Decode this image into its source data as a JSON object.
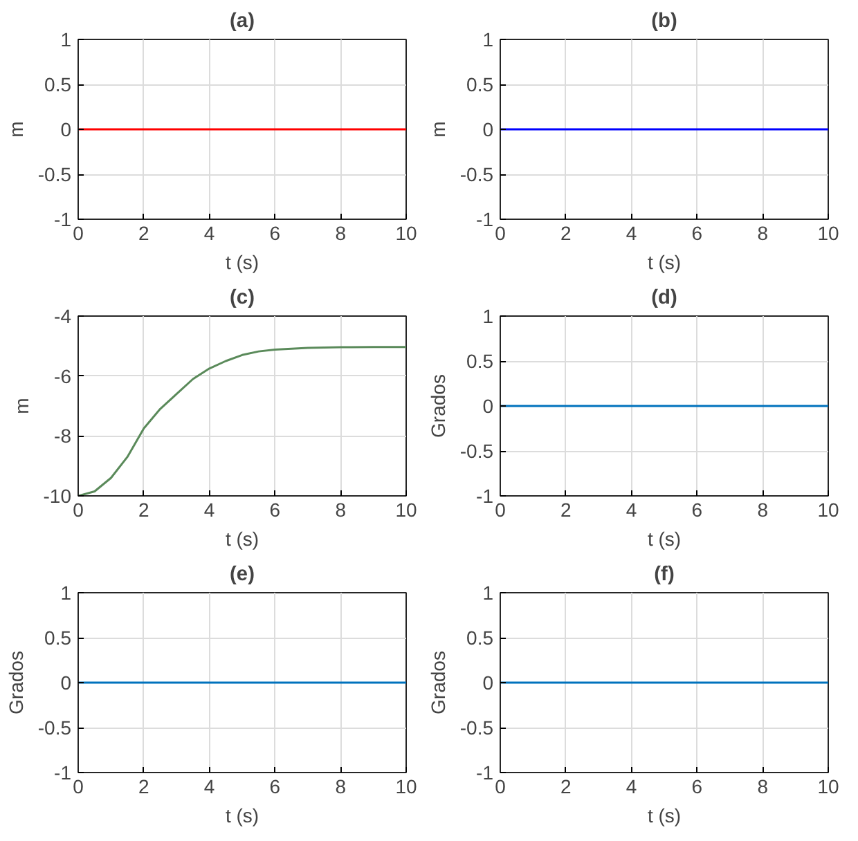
{
  "chart_data": [
    {
      "type": "line",
      "title": "(a)",
      "xlabel": "t (s)",
      "ylabel": "m",
      "x": [
        0,
        10
      ],
      "series": [
        {
          "color": "#ff0000",
          "values": [
            0,
            0
          ]
        }
      ],
      "xlim": [
        0,
        10
      ],
      "ylim": [
        -1,
        1
      ],
      "xticks": [
        0,
        2,
        4,
        6,
        8,
        10
      ],
      "yticks": [
        -1,
        -0.5,
        0,
        0.5,
        1
      ],
      "grid": true
    },
    {
      "type": "line",
      "title": "(b)",
      "xlabel": "t (s)",
      "ylabel": "m",
      "x": [
        0,
        10
      ],
      "series": [
        {
          "color": "#0000ff",
          "values": [
            0,
            0
          ]
        }
      ],
      "xlim": [
        0,
        10
      ],
      "ylim": [
        -1,
        1
      ],
      "xticks": [
        0,
        2,
        4,
        6,
        8,
        10
      ],
      "yticks": [
        -1,
        -0.5,
        0,
        0.5,
        1
      ],
      "grid": true
    },
    {
      "type": "line",
      "title": "(c)",
      "xlabel": "t (s)",
      "ylabel": "m",
      "x": [
        0,
        0.5,
        1,
        1.5,
        2,
        2.5,
        3,
        3.5,
        4,
        4.5,
        5,
        5.5,
        6,
        7,
        8,
        9,
        10
      ],
      "series": [
        {
          "color": "#5a8a5a",
          "values": [
            -10,
            -9.85,
            -9.4,
            -8.7,
            -7.75,
            -7.1,
            -6.6,
            -6.1,
            -5.75,
            -5.5,
            -5.3,
            -5.18,
            -5.12,
            -5.06,
            -5.04,
            -5.03,
            -5.03
          ]
        }
      ],
      "xlim": [
        0,
        10
      ],
      "ylim": [
        -10,
        -4
      ],
      "xticks": [
        0,
        2,
        4,
        6,
        8,
        10
      ],
      "yticks": [
        -10,
        -8,
        -6,
        -4
      ],
      "grid": true
    },
    {
      "type": "line",
      "title": "(d)",
      "xlabel": "t (s)",
      "ylabel": "Grados",
      "x": [
        0,
        10
      ],
      "series": [
        {
          "color": "#0072bd",
          "values": [
            0,
            0
          ]
        }
      ],
      "xlim": [
        0,
        10
      ],
      "ylim": [
        -1,
        1
      ],
      "xticks": [
        0,
        2,
        4,
        6,
        8,
        10
      ],
      "yticks": [
        -1,
        -0.5,
        0,
        0.5,
        1
      ],
      "grid": true
    },
    {
      "type": "line",
      "title": "(e)",
      "xlabel": "t (s)",
      "ylabel": "Grados",
      "x": [
        0,
        10
      ],
      "series": [
        {
          "color": "#0072bd",
          "values": [
            0,
            0
          ]
        }
      ],
      "xlim": [
        0,
        10
      ],
      "ylim": [
        -1,
        1
      ],
      "xticks": [
        0,
        2,
        4,
        6,
        8,
        10
      ],
      "yticks": [
        -1,
        -0.5,
        0,
        0.5,
        1
      ],
      "grid": true
    },
    {
      "type": "line",
      "title": "(f)",
      "xlabel": "t (s)",
      "ylabel": "Grados",
      "x": [
        0,
        10
      ],
      "series": [
        {
          "color": "#0072bd",
          "values": [
            0,
            0
          ]
        }
      ],
      "xlim": [
        0,
        10
      ],
      "ylim": [
        -1,
        1
      ],
      "xticks": [
        0,
        2,
        4,
        6,
        8,
        10
      ],
      "yticks": [
        -1,
        -0.5,
        0,
        0.5,
        1
      ],
      "grid": true
    }
  ]
}
